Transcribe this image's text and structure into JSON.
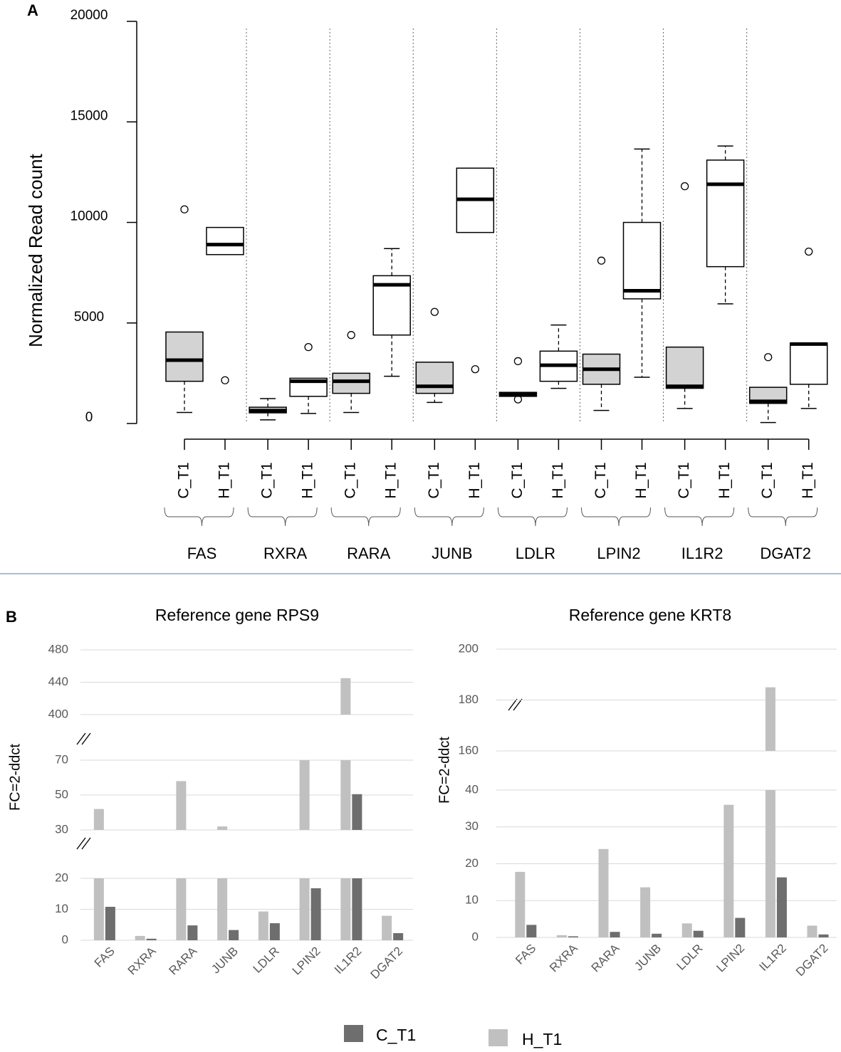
{
  "chart_data": [
    {
      "type": "box",
      "label": "A",
      "y_label": "Normalized Read count",
      "categories": [
        "FAS",
        "RXRA",
        "RARA",
        "JUNB",
        "LDLR",
        "LPIN2",
        "IL1R2",
        "DGAT2"
      ],
      "ylim": [
        0,
        20000
      ],
      "yticks": [
        0,
        5000,
        10000,
        15000,
        20000
      ],
      "series": [
        {
          "name": "C_T1",
          "color": "#d3d3d3",
          "values": [
            {
              "low": 550,
              "q1": 2100,
              "median": 3150,
              "q3": 4550,
              "high": 4550,
              "outliers": [
                10650
              ]
            },
            {
              "low": 180,
              "q1": 530,
              "median": 640,
              "q3": 810,
              "high": 1240,
              "outliers": []
            },
            {
              "low": 550,
              "q1": 1500,
              "median": 2100,
              "q3": 2500,
              "high": 2500,
              "outliers": [
                4400
              ]
            },
            {
              "low": 1050,
              "q1": 1500,
              "median": 1850,
              "q3": 3050,
              "high": 3050,
              "outliers": [
                5550
              ]
            },
            {
              "low": 1350,
              "q1": 1350,
              "median": 1450,
              "q3": 1550,
              "high": 1550,
              "outliers": [
                3100,
                1200
              ]
            },
            {
              "low": 650,
              "q1": 1950,
              "median": 2700,
              "q3": 3450,
              "high": 3450,
              "outliers": [
                8100
              ]
            },
            {
              "low": 750,
              "q1": 1750,
              "median": 1850,
              "q3": 3800,
              "high": 3800,
              "outliers": [
                11800
              ]
            },
            {
              "low": 50,
              "q1": 1000,
              "median": 1100,
              "q3": 1800,
              "high": 1800,
              "outliers": [
                3300
              ]
            }
          ]
        },
        {
          "name": "H_T1",
          "color": "#ffffff",
          "values": [
            {
              "low": 8400,
              "q1": 8400,
              "median": 8900,
              "q3": 9750,
              "high": 9750,
              "outliers": [
                2150
              ]
            },
            {
              "low": 500,
              "q1": 1350,
              "median": 2100,
              "q3": 2250,
              "high": 2250,
              "outliers": [
                3800
              ]
            },
            {
              "low": 2350,
              "q1": 4400,
              "median": 6900,
              "q3": 7350,
              "high": 8700,
              "outliers": []
            },
            {
              "low": 9500,
              "q1": 9500,
              "median": 11150,
              "q3": 12700,
              "high": 12700,
              "outliers": [
                2700
              ]
            },
            {
              "low": 1750,
              "q1": 2100,
              "median": 2900,
              "q3": 3600,
              "high": 4900,
              "outliers": []
            },
            {
              "low": 2300,
              "q1": 6200,
              "median": 6600,
              "q3": 10000,
              "high": 13650,
              "outliers": []
            },
            {
              "low": 5950,
              "q1": 7800,
              "median": 11900,
              "q3": 13100,
              "high": 13800,
              "outliers": []
            },
            {
              "low": 750,
              "q1": 1950,
              "median": 3950,
              "q3": 4000,
              "high": 4000,
              "outliers": [
                8550
              ]
            }
          ]
        }
      ]
    },
    {
      "type": "broken_bar",
      "label": "B",
      "title": "Reference gene RPS9",
      "y_label": "FC=2-ddct",
      "categories": [
        "FAS",
        "RXRA",
        "RARA",
        "JUNB",
        "LDLR",
        "LPIN2",
        "IL1R2",
        "DGAT2"
      ],
      "segments": [
        {
          "ylim": [
            0,
            20
          ],
          "yticks": [
            0,
            10,
            20
          ]
        },
        {
          "ylim": [
            30,
            70
          ],
          "yticks": [
            30,
            50,
            70
          ]
        },
        {
          "ylim": [
            400,
            480
          ],
          "yticks": [
            400,
            440,
            480
          ]
        }
      ],
      "grid": true,
      "series": [
        {
          "name": "C_T1",
          "color": "#6e6e6e",
          "values": [
            10.8,
            0.5,
            4.8,
            3.3,
            5.5,
            16.8,
            50.5,
            2.3
          ]
        },
        {
          "name": "H_T1",
          "color": "#c0c0c0",
          "values": [
            42,
            1.4,
            58,
            32,
            9.3,
            88,
            445,
            7.9
          ]
        }
      ]
    },
    {
      "type": "broken_bar",
      "title": "Reference gene KRT8",
      "y_label": "FC=2-ddct",
      "categories": [
        "FAS",
        "RXRA",
        "RARA",
        "JUNB",
        "LDLR",
        "LPIN2",
        "IL1R2",
        "DGAT2"
      ],
      "segments": [
        {
          "ylim": [
            0,
            40
          ],
          "yticks": [
            0,
            10,
            20,
            30,
            40
          ]
        },
        {
          "ylim": [
            160,
            200
          ],
          "yticks": [
            160,
            180,
            200
          ]
        }
      ],
      "grid": true,
      "series": [
        {
          "color": "#6e6e6e",
          "values": [
            3.4,
            0.3,
            1.5,
            1.0,
            1.8,
            5.3,
            16.3,
            0.8
          ]
        },
        {
          "color": "#c0c0c0",
          "values": [
            17.8,
            0.6,
            24,
            13.6,
            3.8,
            36,
            185,
            3.2
          ]
        }
      ]
    }
  ]
}
